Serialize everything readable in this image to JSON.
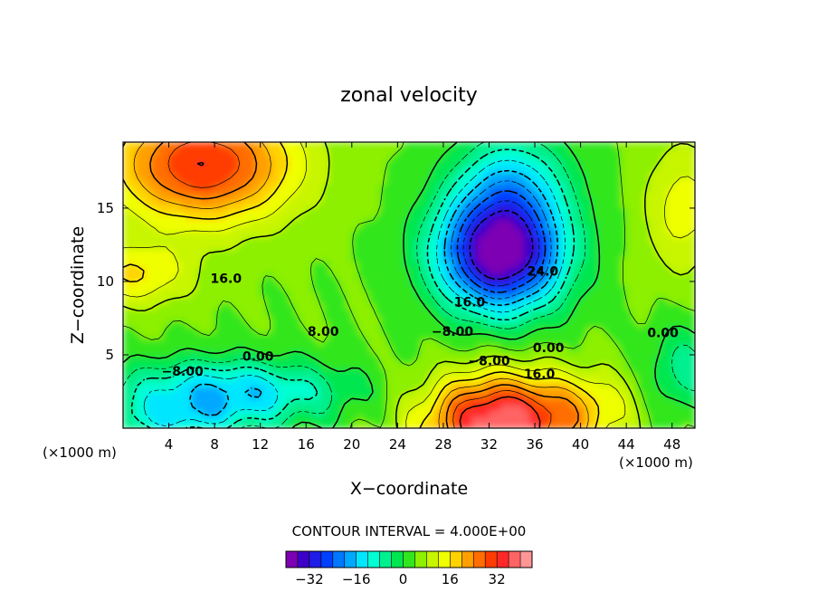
{
  "chart_data": {
    "type": "heatmap",
    "title": "zonal velocity",
    "xlabel": "X−coordinate",
    "ylabel": "Z−coordinate",
    "x_unit_left": "(×1000 m)",
    "x_unit_right": "(×1000 m)",
    "xlim": [
      0,
      50
    ],
    "ylim": [
      0,
      19.5
    ],
    "x_ticks": [
      4,
      8,
      12,
      16,
      20,
      24,
      28,
      32,
      36,
      40,
      44,
      48
    ],
    "x_tick_labels": [
      "4",
      "8",
      "12",
      "16",
      "20",
      "24",
      "28",
      "32",
      "36",
      "40",
      "44",
      "48"
    ],
    "y_ticks": [
      5,
      10,
      15
    ],
    "y_tick_labels": [
      "5",
      "10",
      "15"
    ],
    "contour_interval_text": "CONTOUR INTERVAL = 4.000E+00",
    "contour_labels": [
      {
        "text": "16.0",
        "x": 9,
        "y": 10.2
      },
      {
        "text": "8.00",
        "x": 17.5,
        "y": 6.6
      },
      {
        "text": "0.00",
        "x": 11.8,
        "y": 4.9
      },
      {
        "text": "−8.00",
        "x": 5.2,
        "y": 3.9
      },
      {
        "text": "24.0",
        "x": 36.7,
        "y": 10.7
      },
      {
        "text": "16.0",
        "x": 30.3,
        "y": 8.6
      },
      {
        "text": "−8.00",
        "x": 28.8,
        "y": 6.6
      },
      {
        "text": "−8.00",
        "x": 32,
        "y": 4.6
      },
      {
        "text": "0.00",
        "x": 37.2,
        "y": 5.5
      },
      {
        "text": "16.0",
        "x": 36.4,
        "y": 3.7
      },
      {
        "text": "0.00",
        "x": 47.2,
        "y": 6.5
      }
    ],
    "colorbar_levels": [
      -36,
      -32,
      -28,
      -24,
      -20,
      -16,
      -12,
      -8,
      -4,
      0,
      4,
      8,
      12,
      16,
      20,
      24,
      28,
      32,
      36
    ],
    "colorbar_colors": [
      "#7d00b4",
      "#3c00c8",
      "#1e1ee6",
      "#0040ff",
      "#0078ff",
      "#00a8ff",
      "#00e6ff",
      "#00ffd2",
      "#00f090",
      "#00e650",
      "#32e61e",
      "#8cf000",
      "#c8f500",
      "#f0ff00",
      "#ffd200",
      "#ffa000",
      "#ff6e00",
      "#ff3c00",
      "#ff2828",
      "#ff6464",
      "#ff9696"
    ],
    "colorbar_tick_values": [
      -32,
      -16,
      0,
      16,
      32
    ],
    "colorbar_tick_labels": [
      "−32",
      "−16",
      "0",
      "16",
      "32"
    ]
  }
}
